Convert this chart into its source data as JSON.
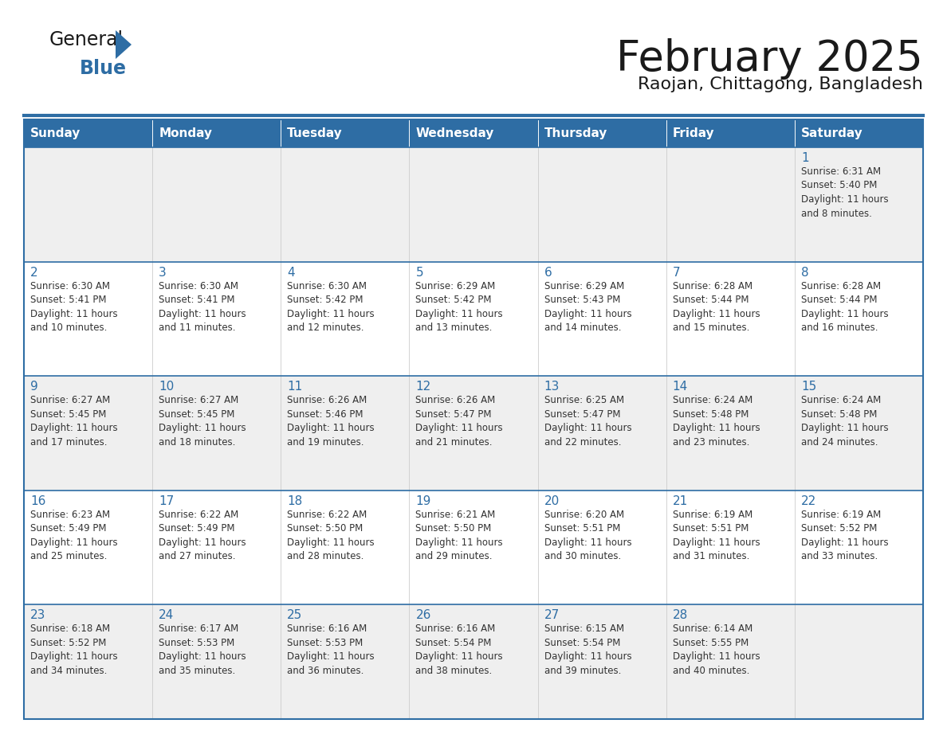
{
  "title": "February 2025",
  "subtitle": "Raojan, Chittagong, Bangladesh",
  "header_bg": "#2E6DA4",
  "header_text_color": "#FFFFFF",
  "cell_bg_even": "#EFEFEF",
  "cell_bg_odd": "#FFFFFF",
  "border_color": "#2E6DA4",
  "day_headers": [
    "Sunday",
    "Monday",
    "Tuesday",
    "Wednesday",
    "Thursday",
    "Friday",
    "Saturday"
  ],
  "title_color": "#1a1a1a",
  "subtitle_color": "#1a1a1a",
  "day_num_color": "#2E6DA4",
  "cell_text_color": "#333333",
  "logo_general_color": "#1a1a1a",
  "logo_blue_color": "#2E6DA4",
  "logo_triangle_color": "#2E6DA4",
  "calendar": [
    [
      {
        "day": 0,
        "info": ""
      },
      {
        "day": 0,
        "info": ""
      },
      {
        "day": 0,
        "info": ""
      },
      {
        "day": 0,
        "info": ""
      },
      {
        "day": 0,
        "info": ""
      },
      {
        "day": 0,
        "info": ""
      },
      {
        "day": 1,
        "info": "Sunrise: 6:31 AM\nSunset: 5:40 PM\nDaylight: 11 hours\nand 8 minutes."
      }
    ],
    [
      {
        "day": 2,
        "info": "Sunrise: 6:30 AM\nSunset: 5:41 PM\nDaylight: 11 hours\nand 10 minutes."
      },
      {
        "day": 3,
        "info": "Sunrise: 6:30 AM\nSunset: 5:41 PM\nDaylight: 11 hours\nand 11 minutes."
      },
      {
        "day": 4,
        "info": "Sunrise: 6:30 AM\nSunset: 5:42 PM\nDaylight: 11 hours\nand 12 minutes."
      },
      {
        "day": 5,
        "info": "Sunrise: 6:29 AM\nSunset: 5:42 PM\nDaylight: 11 hours\nand 13 minutes."
      },
      {
        "day": 6,
        "info": "Sunrise: 6:29 AM\nSunset: 5:43 PM\nDaylight: 11 hours\nand 14 minutes."
      },
      {
        "day": 7,
        "info": "Sunrise: 6:28 AM\nSunset: 5:44 PM\nDaylight: 11 hours\nand 15 minutes."
      },
      {
        "day": 8,
        "info": "Sunrise: 6:28 AM\nSunset: 5:44 PM\nDaylight: 11 hours\nand 16 minutes."
      }
    ],
    [
      {
        "day": 9,
        "info": "Sunrise: 6:27 AM\nSunset: 5:45 PM\nDaylight: 11 hours\nand 17 minutes."
      },
      {
        "day": 10,
        "info": "Sunrise: 6:27 AM\nSunset: 5:45 PM\nDaylight: 11 hours\nand 18 minutes."
      },
      {
        "day": 11,
        "info": "Sunrise: 6:26 AM\nSunset: 5:46 PM\nDaylight: 11 hours\nand 19 minutes."
      },
      {
        "day": 12,
        "info": "Sunrise: 6:26 AM\nSunset: 5:47 PM\nDaylight: 11 hours\nand 21 minutes."
      },
      {
        "day": 13,
        "info": "Sunrise: 6:25 AM\nSunset: 5:47 PM\nDaylight: 11 hours\nand 22 minutes."
      },
      {
        "day": 14,
        "info": "Sunrise: 6:24 AM\nSunset: 5:48 PM\nDaylight: 11 hours\nand 23 minutes."
      },
      {
        "day": 15,
        "info": "Sunrise: 6:24 AM\nSunset: 5:48 PM\nDaylight: 11 hours\nand 24 minutes."
      }
    ],
    [
      {
        "day": 16,
        "info": "Sunrise: 6:23 AM\nSunset: 5:49 PM\nDaylight: 11 hours\nand 25 minutes."
      },
      {
        "day": 17,
        "info": "Sunrise: 6:22 AM\nSunset: 5:49 PM\nDaylight: 11 hours\nand 27 minutes."
      },
      {
        "day": 18,
        "info": "Sunrise: 6:22 AM\nSunset: 5:50 PM\nDaylight: 11 hours\nand 28 minutes."
      },
      {
        "day": 19,
        "info": "Sunrise: 6:21 AM\nSunset: 5:50 PM\nDaylight: 11 hours\nand 29 minutes."
      },
      {
        "day": 20,
        "info": "Sunrise: 6:20 AM\nSunset: 5:51 PM\nDaylight: 11 hours\nand 30 minutes."
      },
      {
        "day": 21,
        "info": "Sunrise: 6:19 AM\nSunset: 5:51 PM\nDaylight: 11 hours\nand 31 minutes."
      },
      {
        "day": 22,
        "info": "Sunrise: 6:19 AM\nSunset: 5:52 PM\nDaylight: 11 hours\nand 33 minutes."
      }
    ],
    [
      {
        "day": 23,
        "info": "Sunrise: 6:18 AM\nSunset: 5:52 PM\nDaylight: 11 hours\nand 34 minutes."
      },
      {
        "day": 24,
        "info": "Sunrise: 6:17 AM\nSunset: 5:53 PM\nDaylight: 11 hours\nand 35 minutes."
      },
      {
        "day": 25,
        "info": "Sunrise: 6:16 AM\nSunset: 5:53 PM\nDaylight: 11 hours\nand 36 minutes."
      },
      {
        "day": 26,
        "info": "Sunrise: 6:16 AM\nSunset: 5:54 PM\nDaylight: 11 hours\nand 38 minutes."
      },
      {
        "day": 27,
        "info": "Sunrise: 6:15 AM\nSunset: 5:54 PM\nDaylight: 11 hours\nand 39 minutes."
      },
      {
        "day": 28,
        "info": "Sunrise: 6:14 AM\nSunset: 5:55 PM\nDaylight: 11 hours\nand 40 minutes."
      },
      {
        "day": 0,
        "info": ""
      }
    ]
  ]
}
